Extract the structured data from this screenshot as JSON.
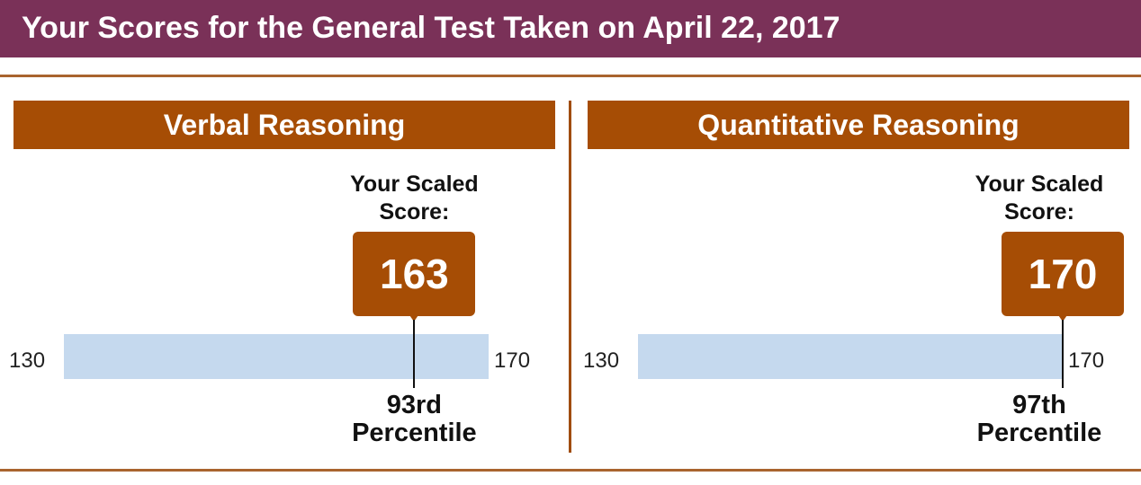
{
  "header": {
    "title": "Your Scores for the General Test Taken on April 22, 2017",
    "background_color": "#7a3158"
  },
  "accent_color": "#a64d05",
  "bar_color": "#c5d9ee",
  "sections": [
    {
      "name": "Verbal Reasoning",
      "scaled_label": "Your Scaled Score:",
      "score": "163",
      "scale_min": "130",
      "scale_max": "170",
      "percentile_value": "93rd",
      "percentile_word": "Percentile"
    },
    {
      "name": "Quantitative Reasoning",
      "scaled_label": "Your Scaled Score:",
      "score": "170",
      "scale_min": "130",
      "scale_max": "170",
      "percentile_value": "97th",
      "percentile_word": "Percentile"
    }
  ]
}
